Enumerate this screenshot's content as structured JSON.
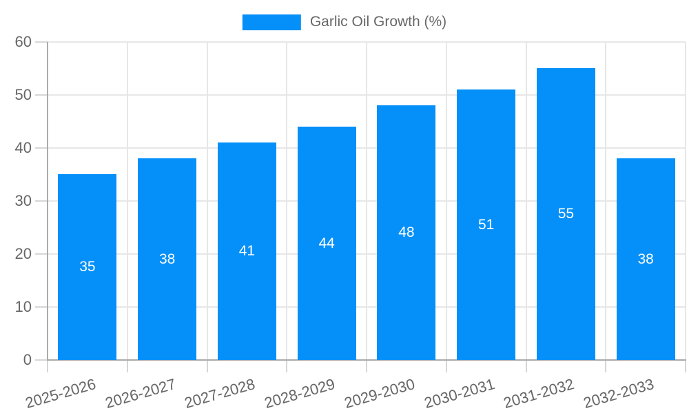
{
  "legend": {
    "position": "top",
    "label": "Garlic Oil Growth (%)"
  },
  "colors": {
    "bar_fill": "#0590f9",
    "bar_label": "#ffffff",
    "axis_label": "#666666",
    "legend_label": "#666666",
    "grid_line": "#e7e7e7",
    "tick_mark": "#d6d6d6",
    "axis_line": "#aaaaaa",
    "background": "#ffffff"
  },
  "chart_data": {
    "type": "bar",
    "categories": [
      "2025-2026",
      "2026-2027",
      "2027-2028",
      "2028-2029",
      "2029-2030",
      "2030-2031",
      "2031-2032",
      "2032-2033"
    ],
    "series": [
      {
        "name": "Garlic Oil Growth (%)",
        "values": [
          35,
          38,
          41,
          44,
          48,
          51,
          55,
          38
        ]
      }
    ],
    "bar_value_labels": [
      35,
      38,
      41,
      44,
      48,
      51,
      55,
      38
    ],
    "yticks": [
      0,
      10,
      20,
      30,
      40,
      50,
      60
    ],
    "ylim": [
      0,
      60
    ],
    "grid": true,
    "legend_position": "top",
    "xlabel": "",
    "ylabel": ""
  }
}
